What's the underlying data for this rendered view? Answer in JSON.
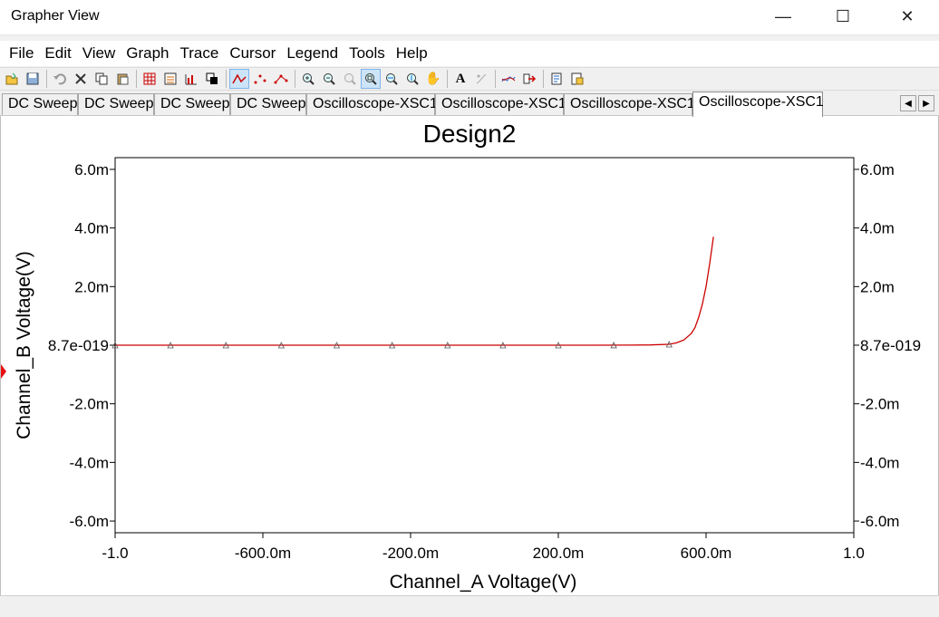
{
  "window": {
    "title": "Grapher View",
    "minimize_glyph": "—",
    "maximize_glyph": "☐",
    "close_glyph": "✕"
  },
  "menu": [
    "File",
    "Edit",
    "View",
    "Graph",
    "Trace",
    "Cursor",
    "Legend",
    "Tools",
    "Help"
  ],
  "toolbar": {
    "groups": [
      [
        "open-icon",
        "save-icon"
      ],
      [
        "undo-icon",
        "delete-icon",
        "copy-icon",
        "paste-icon"
      ],
      [
        "grid-icon",
        "legend-icon",
        "bar-chart-icon",
        "overlay-icon"
      ],
      [
        "trace-line-icon",
        "trace-points-icon",
        "trace-line-points-icon"
      ],
      [
        "zoom-in-icon",
        "zoom-out-icon",
        "zoom-disabled-icon",
        "zoom-full-icon",
        "zoom-x-icon",
        "zoom-y-icon",
        "pan-hand-icon"
      ],
      [
        "text-icon",
        "annotation-disabled-icon"
      ],
      [
        "cursor-icon",
        "export-icon"
      ],
      [
        "print-preview-icon",
        "export-data-icon"
      ]
    ],
    "active": [
      "trace-line-icon",
      "zoom-full-icon"
    ],
    "text_glyph": "A",
    "pan_glyph": "✋"
  },
  "tabs": {
    "items": [
      "DC Sweep",
      "DC Sweep",
      "DC Sweep",
      "DC Sweep",
      "Oscilloscope-XSC1",
      "Oscilloscope-XSC1",
      "Oscilloscope-XSC1",
      "Oscilloscope-XSC1"
    ],
    "active_index": 7,
    "scroll_left": "◀",
    "scroll_right": "▶"
  },
  "chart_data": {
    "type": "line",
    "title": "Design2",
    "xlabel": "Channel_A Voltage(V)",
    "ylabel": "Channel_B Voltage(V)",
    "xlim": [
      -1.0,
      1.0
    ],
    "ylim": [
      -0.0064,
      0.0064
    ],
    "x_ticks": [
      {
        "value": -1.0,
        "label": "-1.0"
      },
      {
        "value": -0.6,
        "label": "-600.0m"
      },
      {
        "value": -0.2,
        "label": "-200.0m"
      },
      {
        "value": 0.2,
        "label": "200.0m"
      },
      {
        "value": 0.6,
        "label": "600.0m"
      },
      {
        "value": 1.0,
        "label": "1.0"
      }
    ],
    "y_ticks": [
      {
        "value": 0.006,
        "label": "6.0m"
      },
      {
        "value": 0.004,
        "label": "4.0m"
      },
      {
        "value": 0.002,
        "label": "2.0m"
      },
      {
        "value": 0.0,
        "label": "8.7e-019"
      },
      {
        "value": -0.002,
        "label": "-2.0m"
      },
      {
        "value": -0.004,
        "label": "-4.0m"
      },
      {
        "value": -0.006,
        "label": "-6.0m"
      }
    ],
    "grid": false,
    "series": [
      {
        "color": "#cc0000",
        "marker": "triangle",
        "marker_color": "#555555",
        "x": [
          -1.0,
          -0.9,
          -0.8,
          -0.7,
          -0.6,
          -0.5,
          -0.4,
          -0.3,
          -0.2,
          -0.1,
          0.0,
          0.1,
          0.2,
          0.3,
          0.4,
          0.45,
          0.5,
          0.52,
          0.54,
          0.56,
          0.57,
          0.58,
          0.59,
          0.6,
          0.61,
          0.62
        ],
        "y": [
          0,
          0,
          0,
          0,
          0,
          0,
          0,
          0,
          0,
          0,
          0,
          0,
          0,
          0,
          5e-06,
          1e-05,
          3e-05,
          8e-05,
          0.00018,
          0.0004,
          0.0006,
          0.00095,
          0.0014,
          0.002,
          0.0028,
          0.0037
        ],
        "marker_x": [
          -1.0,
          -0.85,
          -0.7,
          -0.55,
          -0.4,
          -0.25,
          -0.1,
          0.05,
          0.2,
          0.35,
          0.5
        ]
      }
    ]
  }
}
